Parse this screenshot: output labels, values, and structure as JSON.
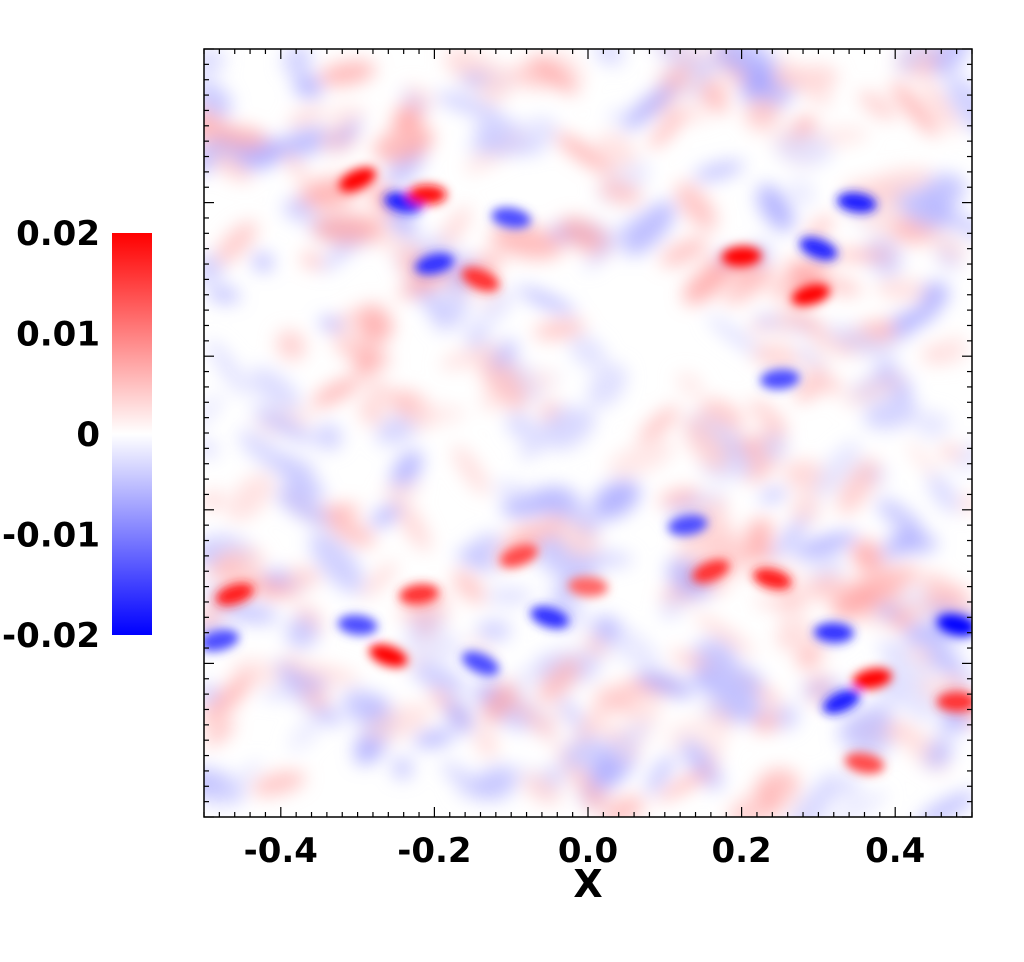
{
  "chart_data": {
    "type": "heatmap",
    "title": "",
    "xlabel": "X",
    "ylabel": "",
    "xlim": [
      -0.5,
      0.5
    ],
    "x_ticks": [
      -0.4,
      -0.2,
      0.0,
      0.2,
      0.4
    ],
    "x_tick_labels": [
      "-0.4",
      "-0.2",
      "0.0",
      "0.2",
      "0.4"
    ],
    "colorbar": {
      "range": [
        -0.02,
        0.02
      ],
      "ticks": [
        0.02,
        0.01,
        0,
        -0.01,
        -0.02
      ],
      "tick_labels": [
        "0.02",
        "0.01",
        "0",
        "-0.01",
        "-0.02"
      ],
      "colormap": [
        "#0000ff",
        "#ffffff",
        "#ff0000"
      ],
      "placement": "left"
    },
    "features": [
      {
        "x": -0.3,
        "y_frac": 0.83,
        "value": 0.02
      },
      {
        "x": -0.24,
        "y_frac": 0.8,
        "value": -0.018
      },
      {
        "x": -0.21,
        "y_frac": 0.81,
        "value": 0.019
      },
      {
        "x": -0.2,
        "y_frac": 0.72,
        "value": -0.016
      },
      {
        "x": -0.14,
        "y_frac": 0.7,
        "value": 0.016
      },
      {
        "x": -0.1,
        "y_frac": 0.78,
        "value": -0.014
      },
      {
        "x": 0.2,
        "y_frac": 0.73,
        "value": 0.02
      },
      {
        "x": 0.29,
        "y_frac": 0.68,
        "value": 0.02
      },
      {
        "x": 0.3,
        "y_frac": 0.74,
        "value": -0.017
      },
      {
        "x": 0.35,
        "y_frac": 0.8,
        "value": -0.018
      },
      {
        "x": 0.25,
        "y_frac": 0.57,
        "value": -0.014
      },
      {
        "x": -0.46,
        "y_frac": 0.29,
        "value": 0.018
      },
      {
        "x": -0.26,
        "y_frac": 0.21,
        "value": 0.02
      },
      {
        "x": -0.3,
        "y_frac": 0.25,
        "value": -0.014
      },
      {
        "x": -0.22,
        "y_frac": 0.29,
        "value": 0.016
      },
      {
        "x": -0.09,
        "y_frac": 0.34,
        "value": 0.014
      },
      {
        "x": -0.05,
        "y_frac": 0.26,
        "value": -0.016
      },
      {
        "x": 0.0,
        "y_frac": 0.3,
        "value": 0.012
      },
      {
        "x": 0.13,
        "y_frac": 0.38,
        "value": -0.014
      },
      {
        "x": 0.16,
        "y_frac": 0.32,
        "value": 0.016
      },
      {
        "x": 0.24,
        "y_frac": 0.31,
        "value": 0.018
      },
      {
        "x": 0.32,
        "y_frac": 0.24,
        "value": -0.016
      },
      {
        "x": 0.37,
        "y_frac": 0.18,
        "value": 0.02
      },
      {
        "x": 0.33,
        "y_frac": 0.15,
        "value": -0.018
      },
      {
        "x": 0.48,
        "y_frac": 0.25,
        "value": -0.02
      },
      {
        "x": 0.48,
        "y_frac": 0.15,
        "value": 0.016
      },
      {
        "x": -0.48,
        "y_frac": 0.23,
        "value": -0.014
      },
      {
        "x": -0.14,
        "y_frac": 0.2,
        "value": -0.014
      },
      {
        "x": 0.36,
        "y_frac": 0.07,
        "value": 0.014
      }
    ]
  }
}
